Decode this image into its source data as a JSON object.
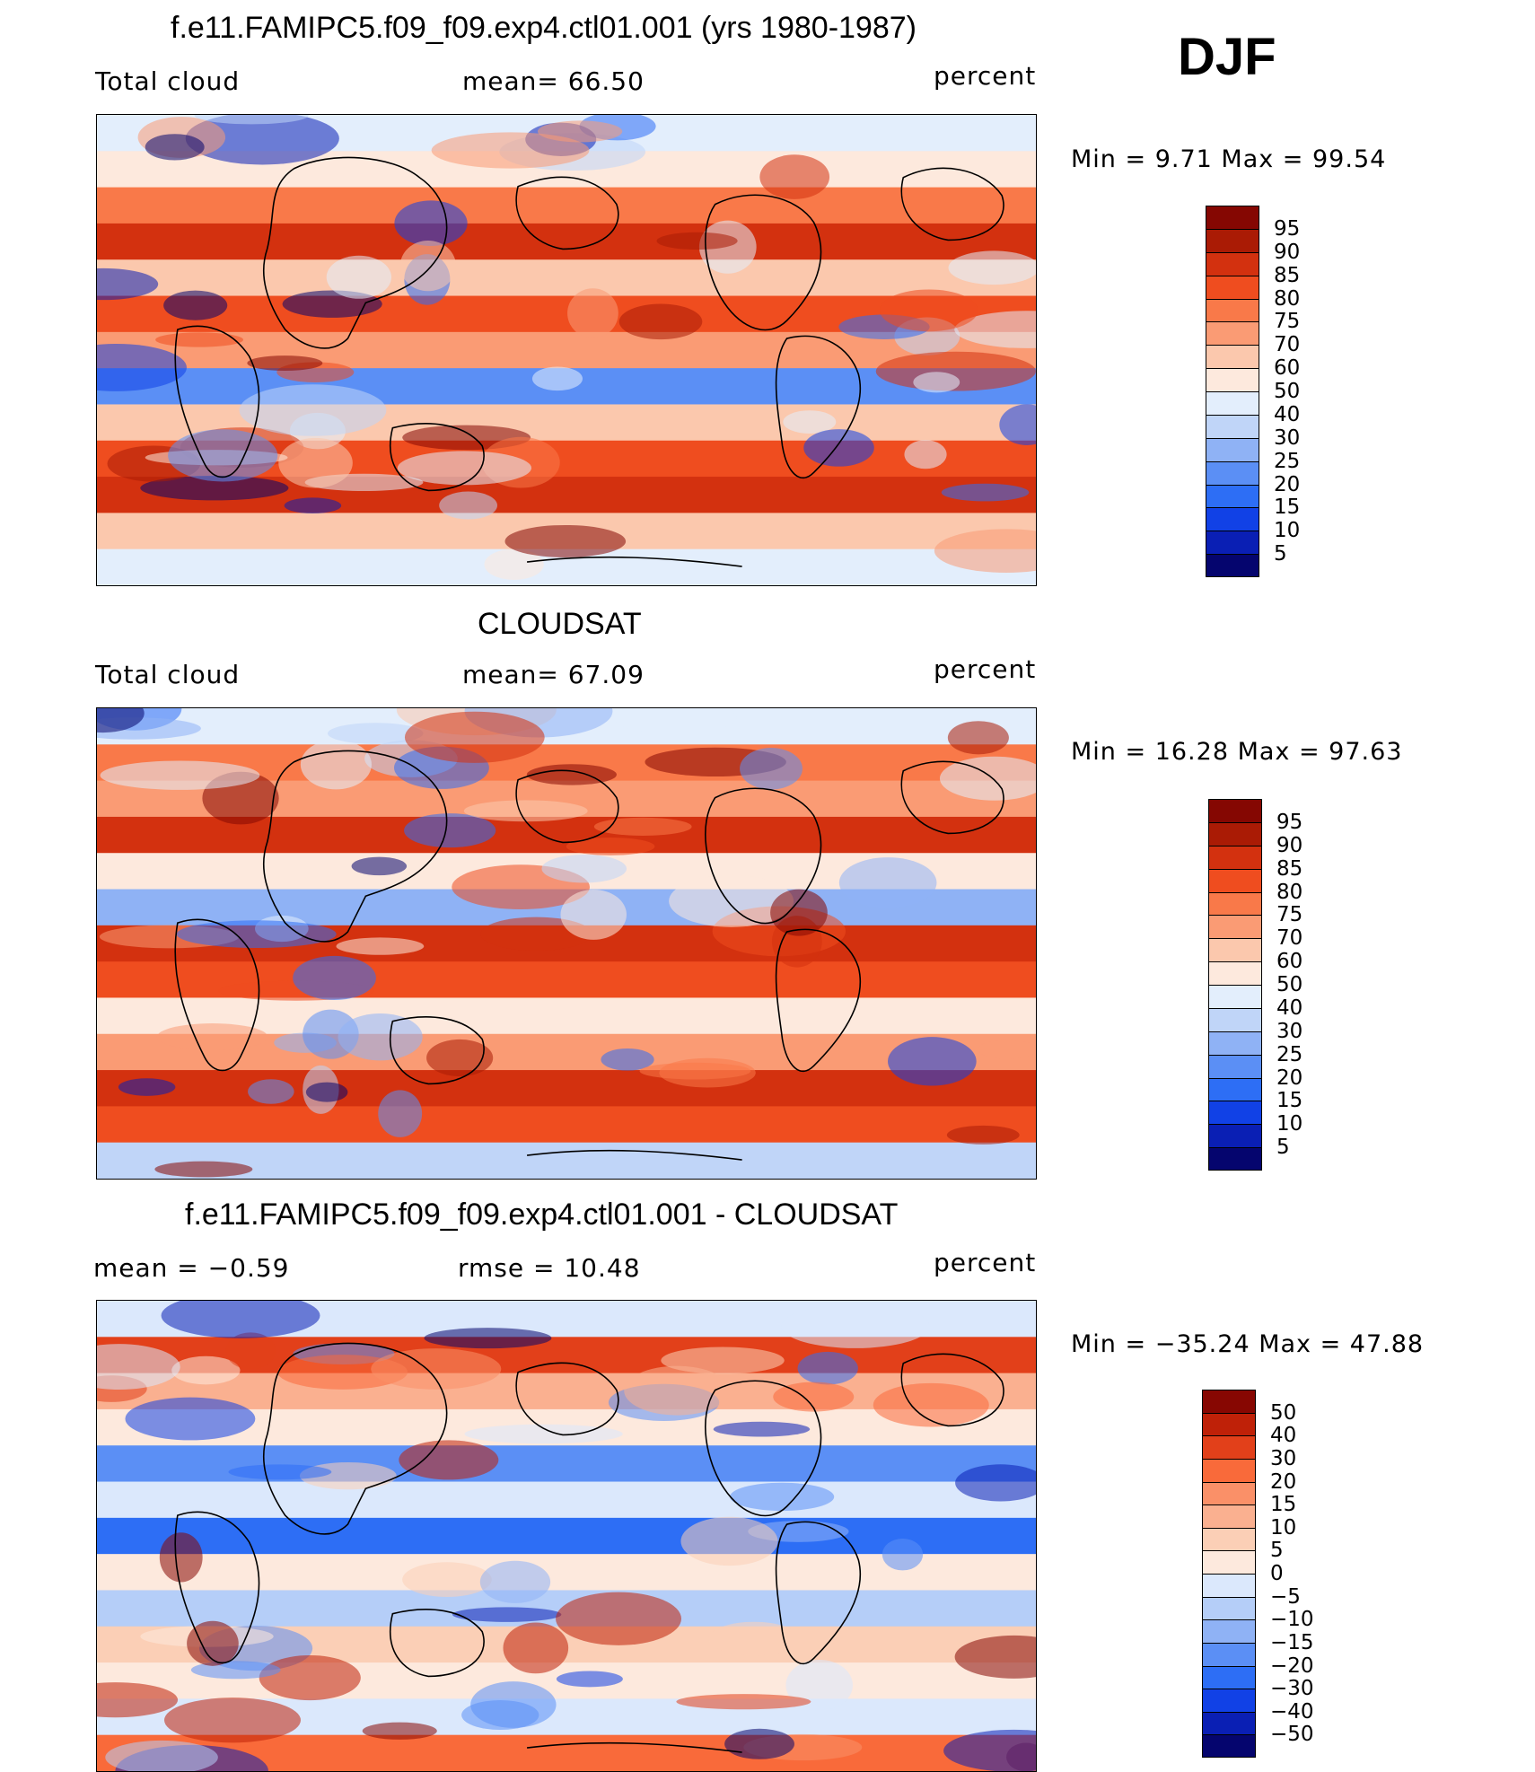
{
  "season": "DJF",
  "colors": {
    "abs_levels": [
      "#05056e",
      "#0a1fb4",
      "#1141e6",
      "#2d6ef5",
      "#5b8ff5",
      "#8fb2f5",
      "#c0d5f8",
      "#e3eefc",
      "#fde9dd",
      "#fbc8ad",
      "#fa9b74",
      "#f97949",
      "#ef4d1f",
      "#d3310f",
      "#aa1b05",
      "#850702"
    ],
    "diff_levels": [
      "#05056e",
      "#0a1fb4",
      "#1141e6",
      "#2d6ef5",
      "#5b8ff5",
      "#8fb2f5",
      "#b5cef8",
      "#dbe8fc",
      "#fde9dd",
      "#fbcfb6",
      "#fab090",
      "#fa9068",
      "#f96a3a",
      "#e2401a",
      "#bf2108",
      "#870702"
    ],
    "coast": "#000000"
  },
  "panels": [
    {
      "title": "f.e11.FAMIPC5.f09_f09.exp4.ctl01.001 (yrs 1980-1987)",
      "left": "Total cloud",
      "center": "mean=   66.50",
      "right": "percent",
      "minmax": "Min =    9.71  Max =   99.54",
      "colorbar_labels": [
        "95",
        "90",
        "85",
        "80",
        "75",
        "70",
        "60",
        "50",
        "40",
        "30",
        "25",
        "20",
        "15",
        "10",
        "5"
      ],
      "bands": [
        "#e3eefc",
        "#fde9dd",
        "#f97949",
        "#d3310f",
        "#fbc8ad",
        "#ef4d1f",
        "#fa9b74",
        "#5b8ff5",
        "#fbc8ad",
        "#ef4d1f",
        "#d3310f",
        "#fbc8ad",
        "#e3eefc"
      ]
    },
    {
      "title": "CLOUDSAT",
      "left": "Total cloud",
      "center": "mean=   67.09",
      "right": "percent",
      "minmax": "Min =   16.28  Max =   97.63",
      "colorbar_labels": [
        "95",
        "90",
        "85",
        "80",
        "75",
        "70",
        "60",
        "50",
        "40",
        "30",
        "25",
        "20",
        "15",
        "10",
        "5"
      ],
      "bands": [
        "#e3eefc",
        "#f97949",
        "#fa9b74",
        "#d3310f",
        "#fde9dd",
        "#8fb2f5",
        "#d3310f",
        "#ef4d1f",
        "#fde9dd",
        "#fa9b74",
        "#d3310f",
        "#ef4d1f",
        "#c0d5f8"
      ]
    },
    {
      "title": "f.e11.FAMIPC5.f09_f09.exp4.ctl01.001 - CLOUDSAT",
      "left": "mean  =   −0.59",
      "center": "rmse  =    10.48",
      "right": "percent",
      "minmax": "Min  = −35.24  Max  =    47.88",
      "colorbar_labels": [
        "50",
        "40",
        "30",
        "20",
        "15",
        "10",
        "5",
        "0",
        "−5",
        "−10",
        "−15",
        "−20",
        "−30",
        "−40",
        "−50"
      ],
      "bands": [
        "#dbe8fc",
        "#e2401a",
        "#fab090",
        "#fde9dd",
        "#5b8ff5",
        "#dbe8fc",
        "#2d6ef5",
        "#fde9dd",
        "#b5cef8",
        "#fbcfb6",
        "#fde9dd",
        "#dbe8fc",
        "#f96a3a"
      ]
    }
  ]
}
